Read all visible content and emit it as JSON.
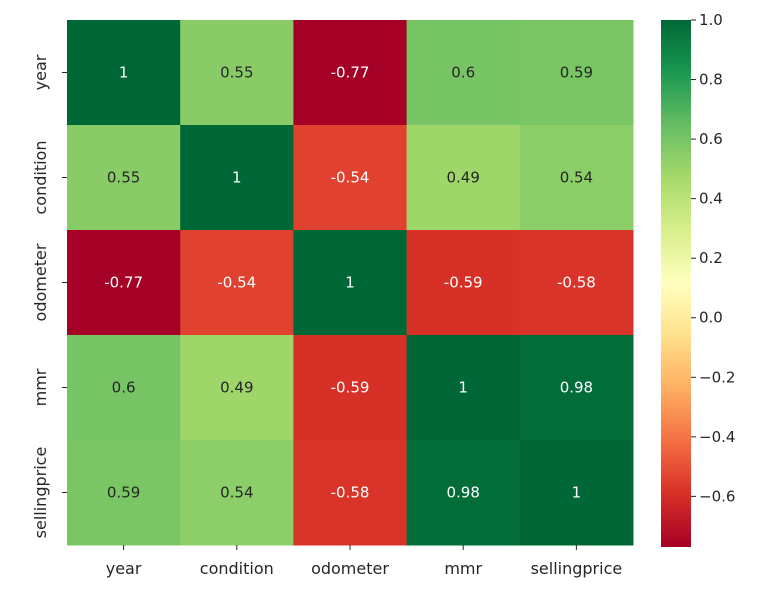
{
  "chart_data": {
    "type": "heatmap",
    "title": "",
    "xlabel": "",
    "ylabel": "",
    "x_categories": [
      "year",
      "condition",
      "odometer",
      "mmr",
      "sellingprice"
    ],
    "y_categories": [
      "year",
      "condition",
      "odometer",
      "mmr",
      "sellingprice"
    ],
    "values": [
      [
        1,
        0.55,
        -0.77,
        0.6,
        0.59
      ],
      [
        0.55,
        1,
        -0.54,
        0.49,
        0.54
      ],
      [
        -0.77,
        -0.54,
        1,
        -0.59,
        -0.58
      ],
      [
        0.6,
        0.49,
        -0.59,
        1,
        0.98
      ],
      [
        0.59,
        0.54,
        -0.58,
        0.98,
        1
      ]
    ],
    "annotations": true,
    "colormap": "RdYlGn",
    "color_range": [
      -0.77,
      1.0
    ],
    "colorbar": {
      "position": "right",
      "ticks": [
        1.0,
        0.8,
        0.6,
        0.4,
        0.2,
        0.0,
        -0.2,
        -0.4,
        -0.6
      ],
      "tick_labels": [
        "1.0",
        "0.8",
        "0.6",
        "0.4",
        "0.2",
        "0.0",
        "−0.2",
        "−0.4",
        "−0.6"
      ]
    },
    "grid": false
  }
}
